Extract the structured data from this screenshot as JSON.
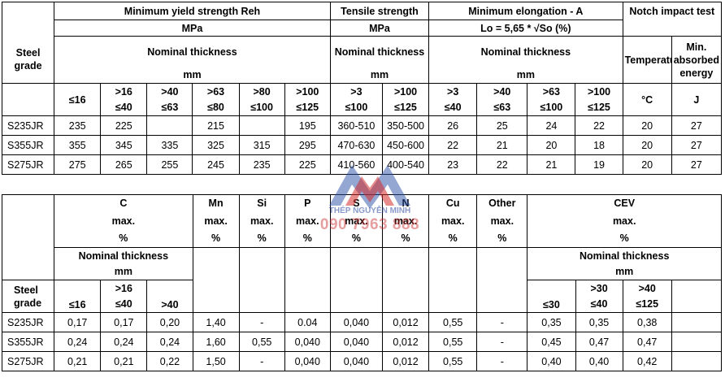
{
  "table1": {
    "h_min_yield": "Minimum yield strength Reh",
    "h_tensile": "Tensile strength",
    "h_min_elong": "Minimum elongation - A",
    "h_notch": "Notch impact test",
    "u_mpa_1": "MPa",
    "u_mpa_2": "MPa",
    "lo_formula": "Lo = 5,65 * √So (%)",
    "steel_grade": "Steel grade",
    "nominal_1": "Nominal thickness",
    "nominal_2": "Nominal thickness",
    "nominal_3": "Nominal thickness",
    "temperature": "Temperature",
    "min_absorbed": "Min. absorbed energy",
    "mm_1": "mm",
    "mm_2": "mm",
    "mm_3": "mm",
    "ranges_top": [
      "",
      ">16",
      ">40",
      ">63",
      ">80",
      ">100",
      ">3",
      ">100",
      ">3",
      ">40",
      ">63",
      ">100"
    ],
    "ranges_bottom": [
      "≤16",
      "≤40",
      "≤63",
      "≤80",
      "≤100",
      "≤125",
      "≤100",
      "≤125",
      "≤40",
      "≤63",
      "≤100",
      "≤125"
    ],
    "temp_unit": "°C",
    "energy_unit": "J",
    "rows": [
      [
        "S235JR",
        "235",
        "225",
        "",
        "215",
        "",
        "195",
        "360-510",
        "350-500",
        "26",
        "25",
        "24",
        "22",
        "20",
        "27"
      ],
      [
        "S355JR",
        "355",
        "345",
        "335",
        "325",
        "315",
        "295",
        "470-630",
        "450-600",
        "22",
        "21",
        "20",
        "18",
        "20",
        "27"
      ],
      [
        "S275JR",
        "275",
        "265",
        "255",
        "245",
        "235",
        "225",
        "410-560",
        "400-540",
        "23",
        "22",
        "21",
        "19",
        "20",
        "27"
      ]
    ]
  },
  "table2": {
    "steel_grade": "Steel grade",
    "elements": [
      "C",
      "Mn",
      "Si",
      "P",
      "S",
      "N",
      "Cu",
      "Other",
      "CEV"
    ],
    "max": "max.",
    "pct": "%",
    "nominal_c": "Nominal thickness",
    "nominal_cev": "Nominal thickness",
    "mm_c": "mm",
    "mm_cev": "mm",
    "c_ranges_top": [
      "",
      ">16",
      ""
    ],
    "c_ranges_bottom": [
      "≤16",
      "≤40",
      ">40"
    ],
    "cev_ranges_top": [
      "",
      ">30",
      ">40"
    ],
    "cev_ranges_bottom": [
      "≤30",
      "≤40",
      "≤125"
    ],
    "rows": [
      [
        "S235JR",
        "0,17",
        "0,17",
        "0,20",
        "1,40",
        "-",
        "0.04",
        "0,040",
        "0,012",
        "0,55",
        "-",
        "0,35",
        "0,35",
        "0,38"
      ],
      [
        "S355JR",
        "0,24",
        "0,24",
        "0,24",
        "1,60",
        "0,55",
        "0,040",
        "0,040",
        "0,012",
        "0,55",
        "-",
        "0,45",
        "0,47",
        "0,47"
      ],
      [
        "S275JR",
        "0,21",
        "0,21",
        "0,22",
        "1,50",
        "-",
        "0,040",
        "0,040",
        "0,012",
        "0,55",
        "-",
        "0,40",
        "0,40",
        "0,42"
      ]
    ]
  },
  "watermark": {
    "brand": "THÉP NGUYỄN MINH",
    "phone": "090 7963 888",
    "logo_color_red": "#d42b2b",
    "logo_color_blue": "#2a4fa8"
  }
}
